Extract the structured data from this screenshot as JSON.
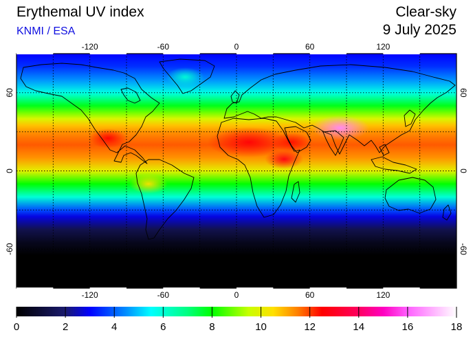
{
  "header": {
    "title": "Erythemal UV index",
    "subtitle": "KNMI / ESA",
    "mode": "Clear-sky",
    "date": "9 July 2025"
  },
  "map": {
    "projection": "equirectangular",
    "lon_range": [
      -180,
      180
    ],
    "lat_range": [
      -90,
      90
    ],
    "lon_ticks": [
      -120,
      -60,
      0,
      60,
      120
    ],
    "lat_ticks": [
      60,
      0,
      -60
    ],
    "grid_lon": [
      -150,
      -120,
      -90,
      -60,
      -30,
      0,
      30,
      60,
      90,
      120,
      150
    ],
    "grid_lat": [
      60,
      30,
      0,
      -30,
      -60
    ],
    "grid": true,
    "grid_style": "dotted",
    "colors": {
      "ocean_background": "#000000",
      "coastline": "#000000",
      "frame": "#000000"
    }
  },
  "colorbar": {
    "min": 0,
    "max": 18,
    "tick_labels": [
      "0",
      "2",
      "4",
      "6",
      "8",
      "10",
      "12",
      "14",
      "16",
      "18"
    ],
    "stops": [
      {
        "value": 0,
        "color": "#000000"
      },
      {
        "value": 2,
        "color": "#1a1a6e"
      },
      {
        "value": 3,
        "color": "#0000ff"
      },
      {
        "value": 4.5,
        "color": "#0090ff"
      },
      {
        "value": 5.5,
        "color": "#00ffff"
      },
      {
        "value": 7,
        "color": "#00ff80"
      },
      {
        "value": 8,
        "color": "#00ff00"
      },
      {
        "value": 9.5,
        "color": "#c8ff00"
      },
      {
        "value": 10.5,
        "color": "#ffe000"
      },
      {
        "value": 11.5,
        "color": "#ff8000"
      },
      {
        "value": 12.5,
        "color": "#ff0000"
      },
      {
        "value": 14,
        "color": "#ff0060"
      },
      {
        "value": 15,
        "color": "#ff00c0"
      },
      {
        "value": 16,
        "color": "#ff60ff"
      },
      {
        "value": 18,
        "color": "#ffffff"
      }
    ]
  },
  "uv_by_latitude": [
    {
      "lat": 90,
      "uv": 3.0
    },
    {
      "lat": 80,
      "uv": 3.5
    },
    {
      "lat": 70,
      "uv": 4.5
    },
    {
      "lat": 60,
      "uv": 5.8
    },
    {
      "lat": 50,
      "uv": 7.8
    },
    {
      "lat": 45,
      "uv": 8.8
    },
    {
      "lat": 40,
      "uv": 9.8
    },
    {
      "lat": 35,
      "uv": 10.8
    },
    {
      "lat": 30,
      "uv": 11.3
    },
    {
      "lat": 25,
      "uv": 11.6
    },
    {
      "lat": 20,
      "uv": 11.8
    },
    {
      "lat": 10,
      "uv": 11.3
    },
    {
      "lat": 0,
      "uv": 10.0
    },
    {
      "lat": -10,
      "uv": 8.0
    },
    {
      "lat": -20,
      "uv": 6.0
    },
    {
      "lat": -30,
      "uv": 3.8
    },
    {
      "lat": -35,
      "uv": 2.8
    },
    {
      "lat": -45,
      "uv": 1.4
    },
    {
      "lat": -55,
      "uv": 0.5
    },
    {
      "lat": -65,
      "uv": 0.0
    },
    {
      "lat": -90,
      "uv": 0.0
    }
  ],
  "uv_hotspots": [
    {
      "region": "tibetan-plateau",
      "lon": 85,
      "lat": 33,
      "uv": 16.5
    },
    {
      "region": "sahara",
      "lon": 10,
      "lat": 22,
      "uv": 12.6
    },
    {
      "region": "arabia",
      "lon": 45,
      "lat": 22,
      "uv": 12.4
    },
    {
      "region": "ethiopian-highlands",
      "lon": 39,
      "lat": 9,
      "uv": 12.8
    },
    {
      "region": "andes",
      "lon": -72,
      "lat": -10,
      "uv": 10.5
    },
    {
      "region": "mexico",
      "lon": -105,
      "lat": 25,
      "uv": 12.5
    },
    {
      "region": "greenland",
      "lon": -42,
      "lat": 72,
      "uv": 6.0
    }
  ]
}
